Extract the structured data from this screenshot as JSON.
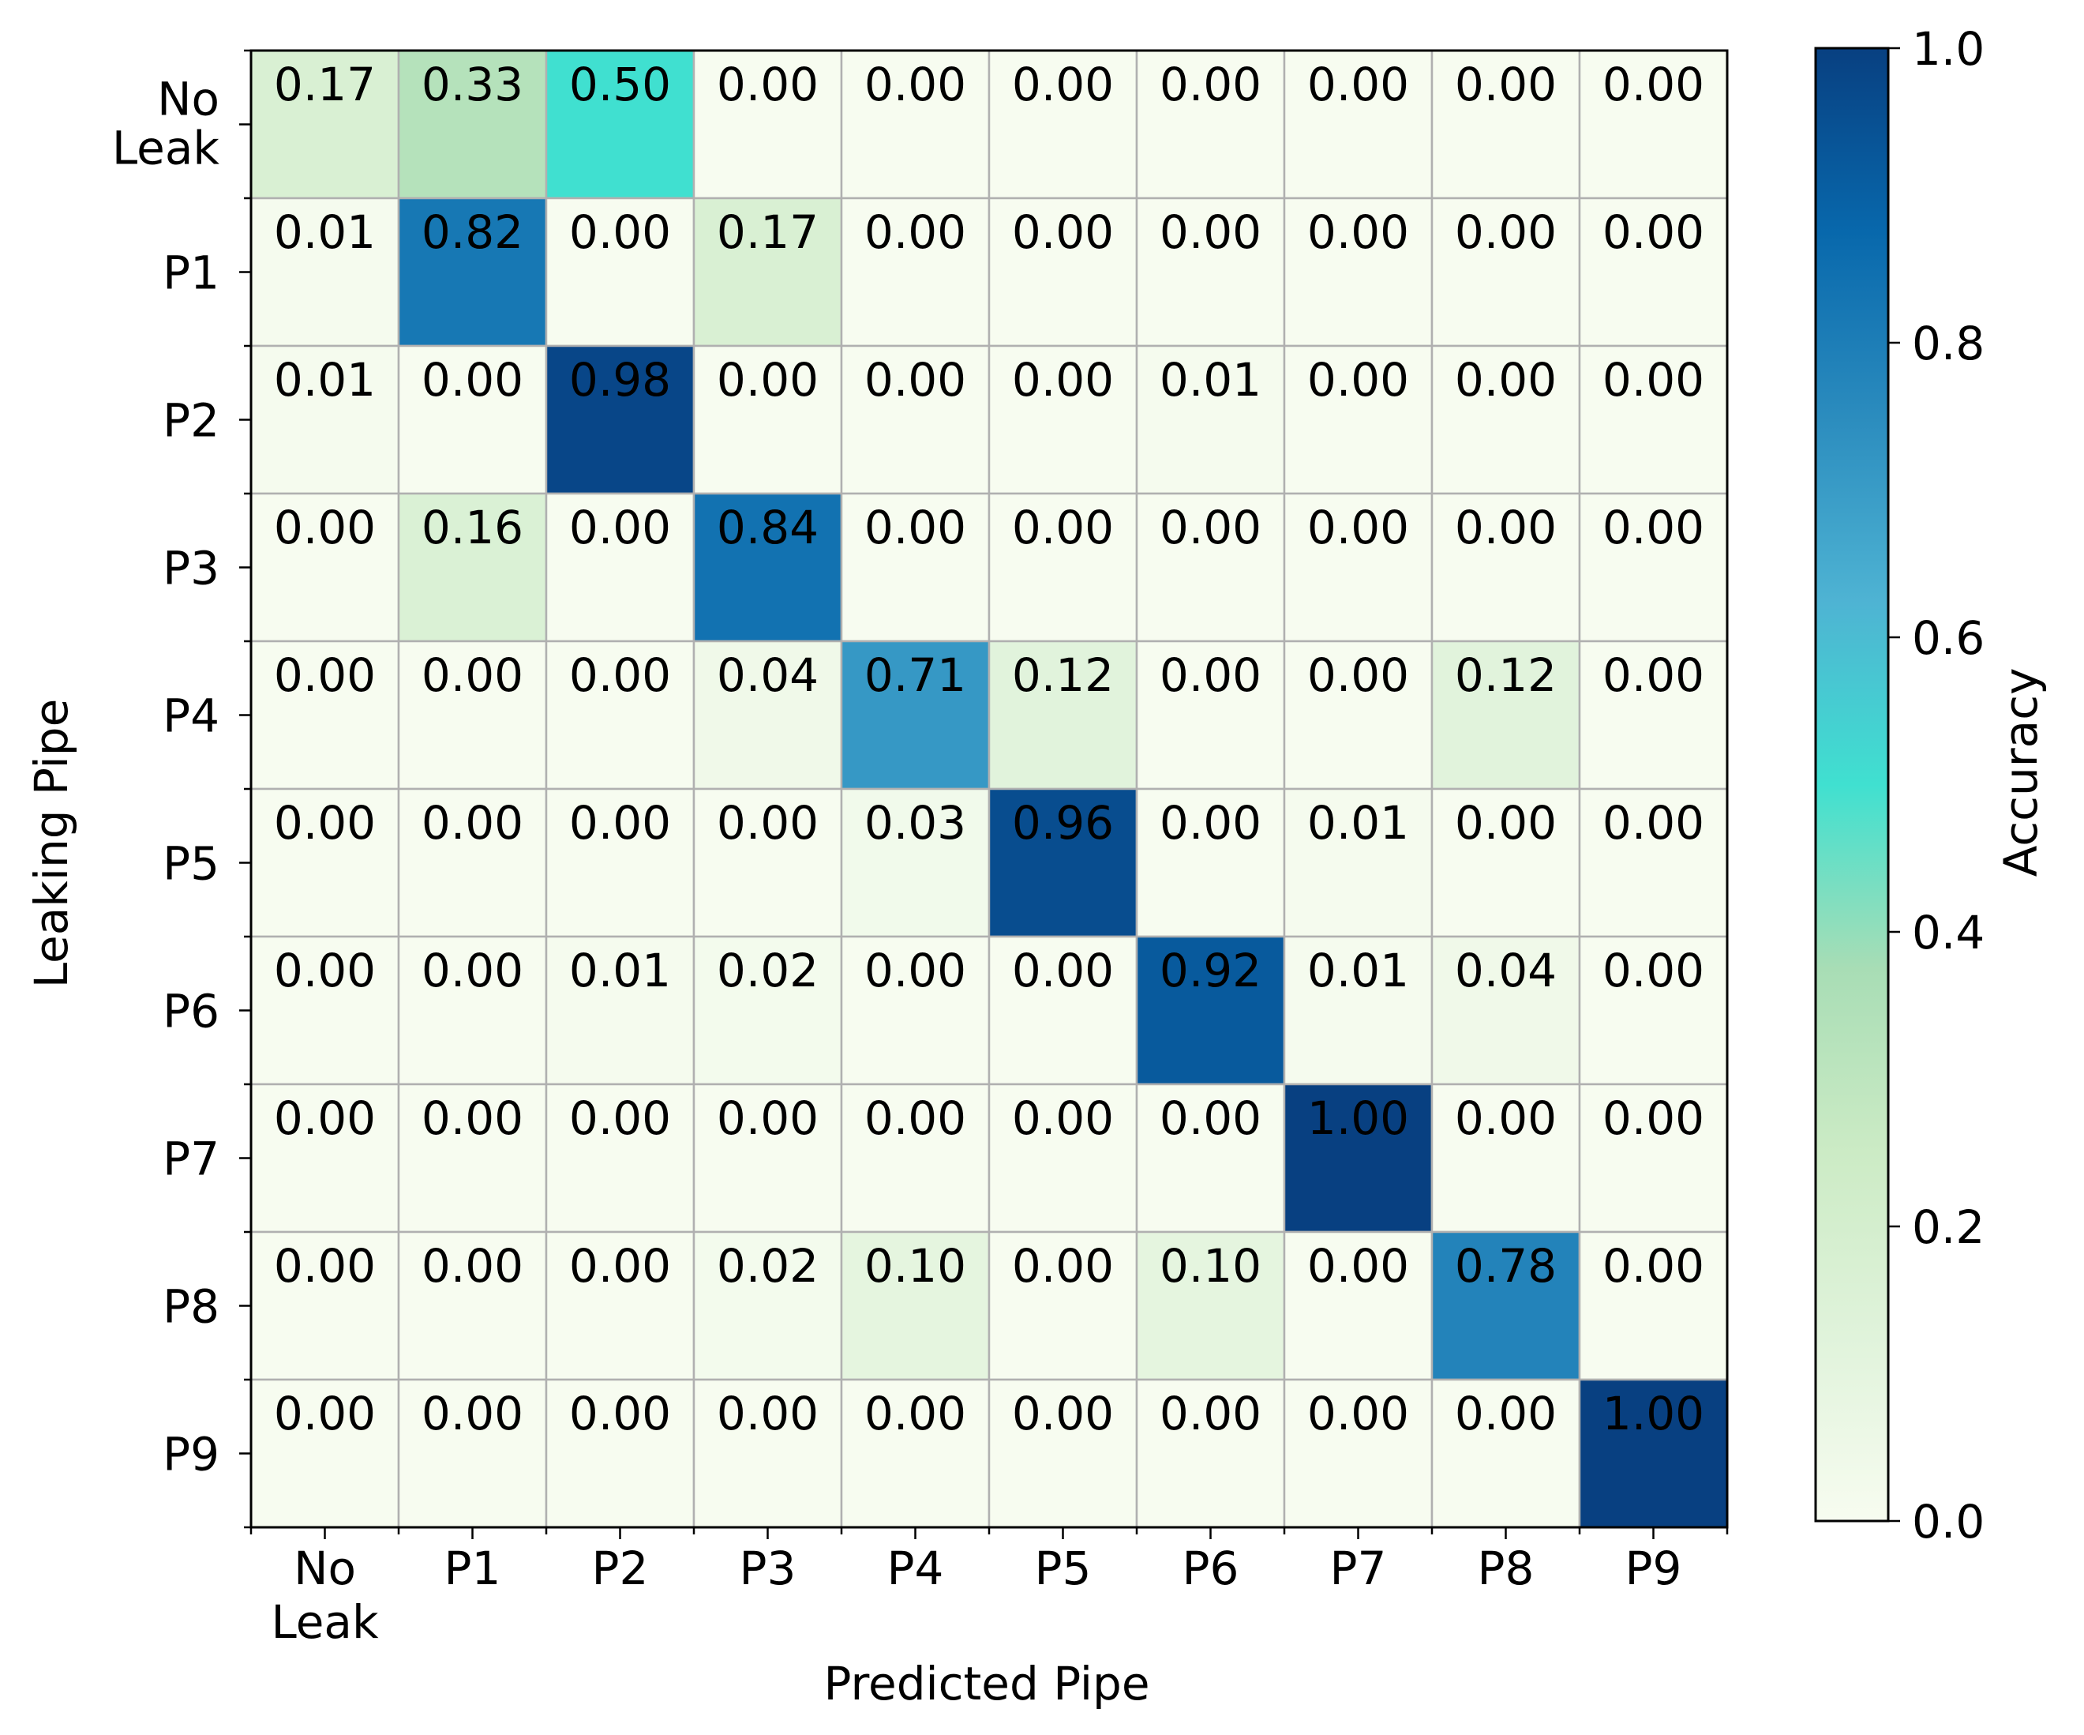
{
  "chart_data": {
    "type": "heatmap",
    "title": "",
    "xlabel": "Predicted Pipe",
    "ylabel": "Leaking Pipe",
    "x_categories": [
      [
        "No",
        "Leak"
      ],
      [
        "P1"
      ],
      [
        "P2"
      ],
      [
        "P3"
      ],
      [
        "P4"
      ],
      [
        "P5"
      ],
      [
        "P6"
      ],
      [
        "P7"
      ],
      [
        "P8"
      ],
      [
        "P9"
      ]
    ],
    "y_categories": [
      [
        "No",
        "Leak"
      ],
      [
        "P1"
      ],
      [
        "P2"
      ],
      [
        "P3"
      ],
      [
        "P4"
      ],
      [
        "P5"
      ],
      [
        "P6"
      ],
      [
        "P7"
      ],
      [
        "P8"
      ],
      [
        "P9"
      ]
    ],
    "values": [
      [
        0.17,
        0.33,
        0.5,
        0.0,
        0.0,
        0.0,
        0.0,
        0.0,
        0.0,
        0.0
      ],
      [
        0.01,
        0.82,
        0.0,
        0.17,
        0.0,
        0.0,
        0.0,
        0.0,
        0.0,
        0.0
      ],
      [
        0.01,
        0.0,
        0.98,
        0.0,
        0.0,
        0.0,
        0.01,
        0.0,
        0.0,
        0.0
      ],
      [
        0.0,
        0.16,
        0.0,
        0.84,
        0.0,
        0.0,
        0.0,
        0.0,
        0.0,
        0.0
      ],
      [
        0.0,
        0.0,
        0.0,
        0.04,
        0.71,
        0.12,
        0.0,
        0.0,
        0.12,
        0.0
      ],
      [
        0.0,
        0.0,
        0.0,
        0.0,
        0.03,
        0.96,
        0.0,
        0.01,
        0.0,
        0.0
      ],
      [
        0.0,
        0.0,
        0.01,
        0.02,
        0.0,
        0.0,
        0.92,
        0.01,
        0.04,
        0.0
      ],
      [
        0.0,
        0.0,
        0.0,
        0.0,
        0.0,
        0.0,
        0.0,
        1.0,
        0.0,
        0.0
      ],
      [
        0.0,
        0.0,
        0.0,
        0.02,
        0.1,
        0.0,
        0.1,
        0.0,
        0.78,
        0.0
      ],
      [
        0.0,
        0.0,
        0.0,
        0.0,
        0.0,
        0.0,
        0.0,
        0.0,
        0.0,
        1.0
      ]
    ],
    "value_format_decimals": 2,
    "colorbar": {
      "label": "Accuracy",
      "range": [
        0.0,
        1.0
      ],
      "ticks": [
        "0.0",
        "0.2",
        "0.4",
        "0.6",
        "0.8",
        "1.0"
      ],
      "colormap": "GnBu"
    },
    "colormap_stops": [
      "#f7fcf0",
      "#e0f3db",
      "#ccebc5",
      "#a8ddb5",
      "#40e0d0",
      "#4eb3d3",
      "#2b8cbe",
      "#0868ac",
      "#084081"
    ],
    "grid": true,
    "grid_color": "#b0b0b0"
  }
}
